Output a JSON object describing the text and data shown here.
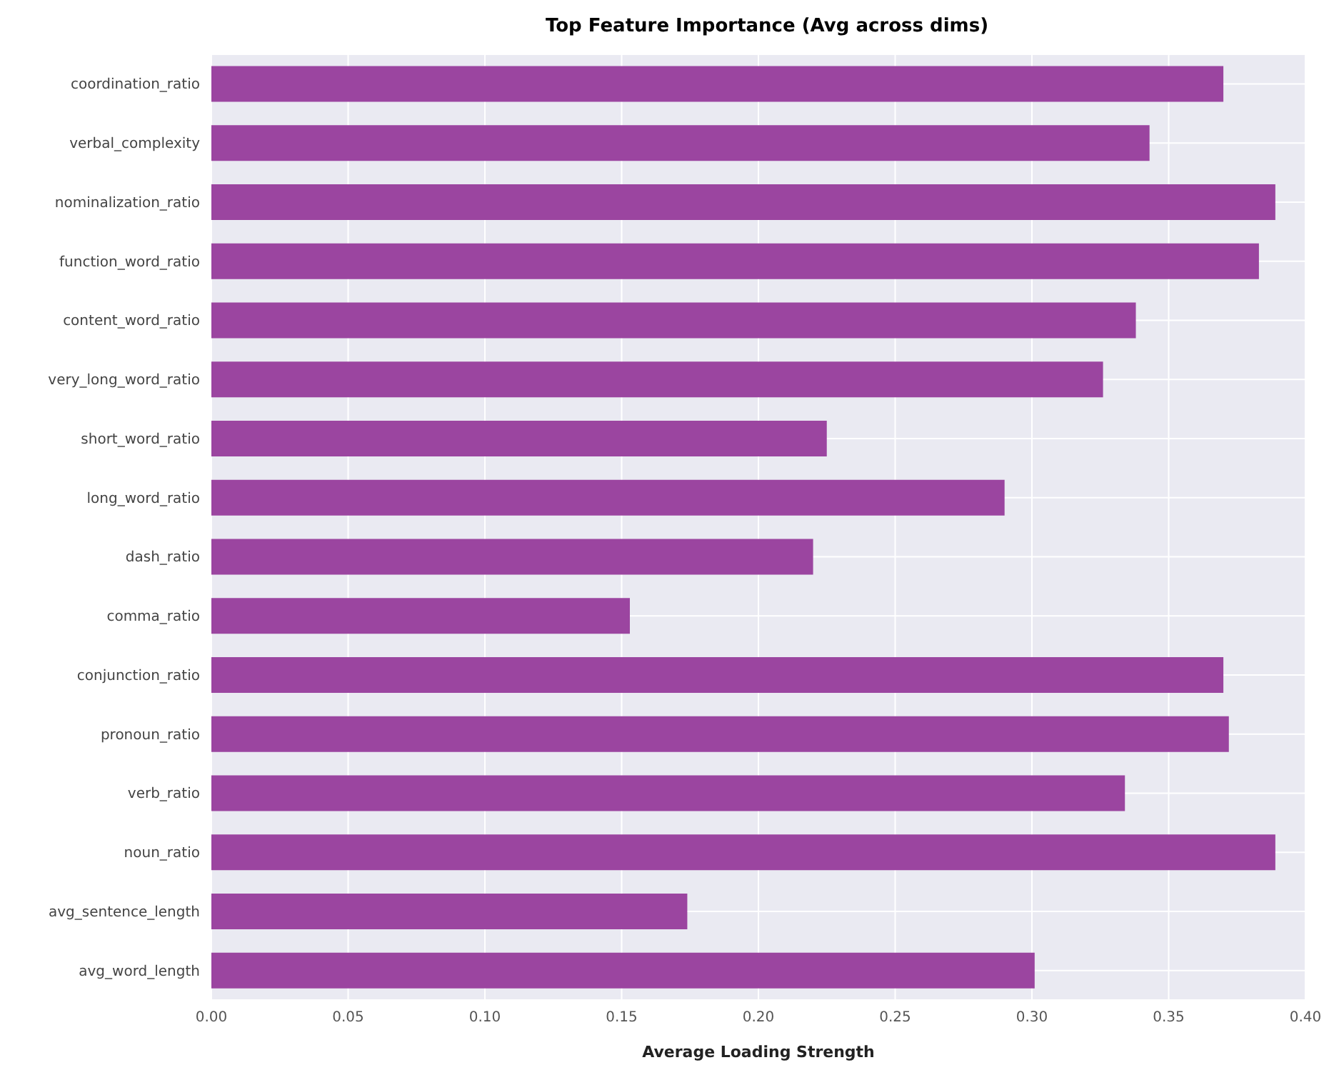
{
  "chart_data": {
    "type": "bar",
    "orientation": "horizontal",
    "title": "Top Feature Importance (Avg across dims)",
    "xlabel": "Average Loading Strength",
    "categories": [
      "coordination_ratio",
      "verbal_complexity",
      "nominalization_ratio",
      "function_word_ratio",
      "content_word_ratio",
      "very_long_word_ratio",
      "short_word_ratio",
      "long_word_ratio",
      "dash_ratio",
      "comma_ratio",
      "conjunction_ratio",
      "pronoun_ratio",
      "verb_ratio",
      "noun_ratio",
      "avg_sentence_length",
      "avg_word_length"
    ],
    "values": [
      0.37,
      0.343,
      0.389,
      0.383,
      0.338,
      0.326,
      0.225,
      0.29,
      0.22,
      0.153,
      0.37,
      0.372,
      0.334,
      0.389,
      0.174,
      0.301
    ],
    "color": "#9b45a0",
    "xlim": [
      0,
      0.4
    ],
    "xticks": [
      {
        "value": 0,
        "label": "0.00"
      },
      {
        "value": 0.05,
        "label": "0.05"
      },
      {
        "value": 0.1,
        "label": "0.10"
      },
      {
        "value": 0.15,
        "label": "0.15"
      },
      {
        "value": 0.2,
        "label": "0.20"
      },
      {
        "value": 0.25,
        "label": "0.25"
      },
      {
        "value": 0.3,
        "label": "0.30"
      },
      {
        "value": 0.35,
        "label": "0.35"
      },
      {
        "value": 0.4,
        "label": "0.40"
      }
    ],
    "grid": true
  }
}
